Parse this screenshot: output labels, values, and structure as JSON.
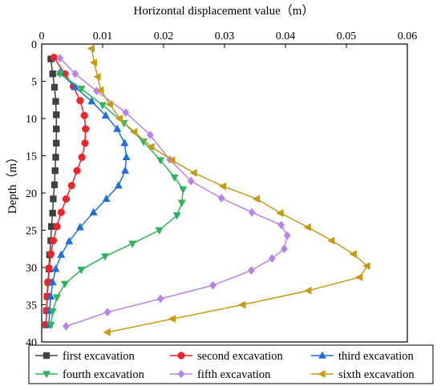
{
  "chart_data": {
    "type": "line",
    "xlabel": "Horizontal displacement value（m）",
    "ylabel": "Depth（m）",
    "xlim": [
      0,
      0.06
    ],
    "ylim": [
      0,
      40
    ],
    "y_inverted": true,
    "x_axis_position": "top",
    "x_ticks": [
      "0",
      "0.01",
      "0.02",
      "0.03",
      "0.04",
      "0.05",
      "0.06"
    ],
    "y_ticks": [
      "0",
      "5",
      "10",
      "15",
      "20",
      "25",
      "30",
      "35",
      "40"
    ],
    "legend_position": "bottom",
    "grid": false,
    "series": [
      {
        "name": "first excavation",
        "color": "#404040",
        "marker": "square",
        "points": [
          [
            0.0015,
            2
          ],
          [
            0.0018,
            4
          ],
          [
            0.0021,
            5.8
          ],
          [
            0.0023,
            7.7
          ],
          [
            0.0024,
            9.5
          ],
          [
            0.0024,
            11.4
          ],
          [
            0.0024,
            13.3
          ],
          [
            0.0023,
            15.2
          ],
          [
            0.0022,
            17
          ],
          [
            0.0021,
            18.9
          ],
          [
            0.0019,
            20.8
          ],
          [
            0.0018,
            22.7
          ],
          [
            0.0016,
            24.5
          ],
          [
            0.0015,
            26.4
          ],
          [
            0.0013,
            28.3
          ],
          [
            0.0012,
            30.2
          ],
          [
            0.0011,
            32
          ],
          [
            0.0009,
            33.9
          ],
          [
            0.0008,
            35.8
          ],
          [
            0.0007,
            37.7
          ]
        ]
      },
      {
        "name": "second excavation",
        "color": "#e8262b",
        "marker": "circle",
        "points": [
          [
            0.002,
            1.8
          ],
          [
            0.0038,
            4
          ],
          [
            0.0052,
            5.7
          ],
          [
            0.0063,
            7.6
          ],
          [
            0.007,
            9.6
          ],
          [
            0.0072,
            11.4
          ],
          [
            0.0071,
            13.3
          ],
          [
            0.0066,
            15.2
          ],
          [
            0.0058,
            17
          ],
          [
            0.0049,
            19
          ],
          [
            0.004,
            20.8
          ],
          [
            0.0032,
            22.6
          ],
          [
            0.0025,
            24.5
          ],
          [
            0.0019,
            26.4
          ],
          [
            0.0015,
            28.2
          ],
          [
            0.0012,
            30.1
          ],
          [
            0.001,
            32
          ],
          [
            0.0009,
            33.9
          ],
          [
            0.0008,
            35.8
          ],
          [
            0.0007,
            37.7
          ]
        ]
      },
      {
        "name": "third excavation",
        "color": "#1f6fd8",
        "marker": "triangle-up",
        "points": [
          [
            0.003,
            3.8
          ],
          [
            0.0055,
            5.8
          ],
          [
            0.0082,
            7.7
          ],
          [
            0.0105,
            9.6
          ],
          [
            0.0124,
            11.4
          ],
          [
            0.0136,
            13.3
          ],
          [
            0.0139,
            15.2
          ],
          [
            0.0137,
            17
          ],
          [
            0.0126,
            19
          ],
          [
            0.0106,
            20.8
          ],
          [
            0.0085,
            22.6
          ],
          [
            0.0063,
            24.6
          ],
          [
            0.0045,
            26.5
          ],
          [
            0.0032,
            28.3
          ],
          [
            0.0023,
            30.2
          ],
          [
            0.0018,
            32
          ],
          [
            0.0015,
            33.9
          ],
          [
            0.0013,
            35.8
          ],
          [
            0.0012,
            37.7
          ]
        ]
      },
      {
        "name": "fourth excavation",
        "color": "#2eb45a",
        "marker": "triangle-down",
        "points": [
          [
            0.003,
            4
          ],
          [
            0.0065,
            6
          ],
          [
            0.01,
            8.2
          ],
          [
            0.0135,
            10.6
          ],
          [
            0.0167,
            13.1
          ],
          [
            0.0195,
            15.6
          ],
          [
            0.0218,
            17.9
          ],
          [
            0.0232,
            19.5
          ],
          [
            0.023,
            21.3
          ],
          [
            0.0222,
            23
          ],
          [
            0.0193,
            25
          ],
          [
            0.0149,
            26.8
          ],
          [
            0.0104,
            28.5
          ],
          [
            0.0065,
            30.3
          ],
          [
            0.0038,
            32.2
          ],
          [
            0.0025,
            34
          ],
          [
            0.0018,
            35.9
          ],
          [
            0.0015,
            37.7
          ]
        ]
      },
      {
        "name": "fifth excavation",
        "color": "#b983e8",
        "marker": "diamond",
        "points": [
          [
            0.003,
            1.9
          ],
          [
            0.0055,
            4
          ],
          [
            0.009,
            6.3
          ],
          [
            0.0138,
            9.2
          ],
          [
            0.0178,
            12.2
          ],
          [
            0.021,
            15.5
          ],
          [
            0.0245,
            18.4
          ],
          [
            0.0295,
            20.7
          ],
          [
            0.0345,
            22.6
          ],
          [
            0.0393,
            24.3
          ],
          [
            0.0403,
            25.7
          ],
          [
            0.0398,
            27.5
          ],
          [
            0.0378,
            28.8
          ],
          [
            0.0344,
            30.4
          ],
          [
            0.0281,
            32.4
          ],
          [
            0.0195,
            34.2
          ],
          [
            0.0108,
            36
          ],
          [
            0.004,
            37.9
          ]
        ]
      },
      {
        "name": "sixth excavation",
        "color": "#c89a14",
        "marker": "triangle-left",
        "points": [
          [
            0.0082,
            0.6
          ],
          [
            0.0086,
            2.5
          ],
          [
            0.0092,
            4.4
          ],
          [
            0.0097,
            6.2
          ],
          [
            0.0112,
            8.1
          ],
          [
            0.0128,
            10
          ],
          [
            0.0152,
            11.8
          ],
          [
            0.018,
            13.8
          ],
          [
            0.0214,
            15.6
          ],
          [
            0.025,
            17.3
          ],
          [
            0.0298,
            19.1
          ],
          [
            0.0353,
            20.8
          ],
          [
            0.0392,
            22.7
          ],
          [
            0.0437,
            24.6
          ],
          [
            0.0476,
            26.4
          ],
          [
            0.0512,
            28.2
          ],
          [
            0.0534,
            29.8
          ],
          [
            0.0522,
            31.3
          ],
          [
            0.0438,
            33.1
          ],
          [
            0.033,
            35
          ],
          [
            0.0215,
            36.9
          ],
          [
            0.0108,
            38.7
          ]
        ]
      }
    ]
  }
}
